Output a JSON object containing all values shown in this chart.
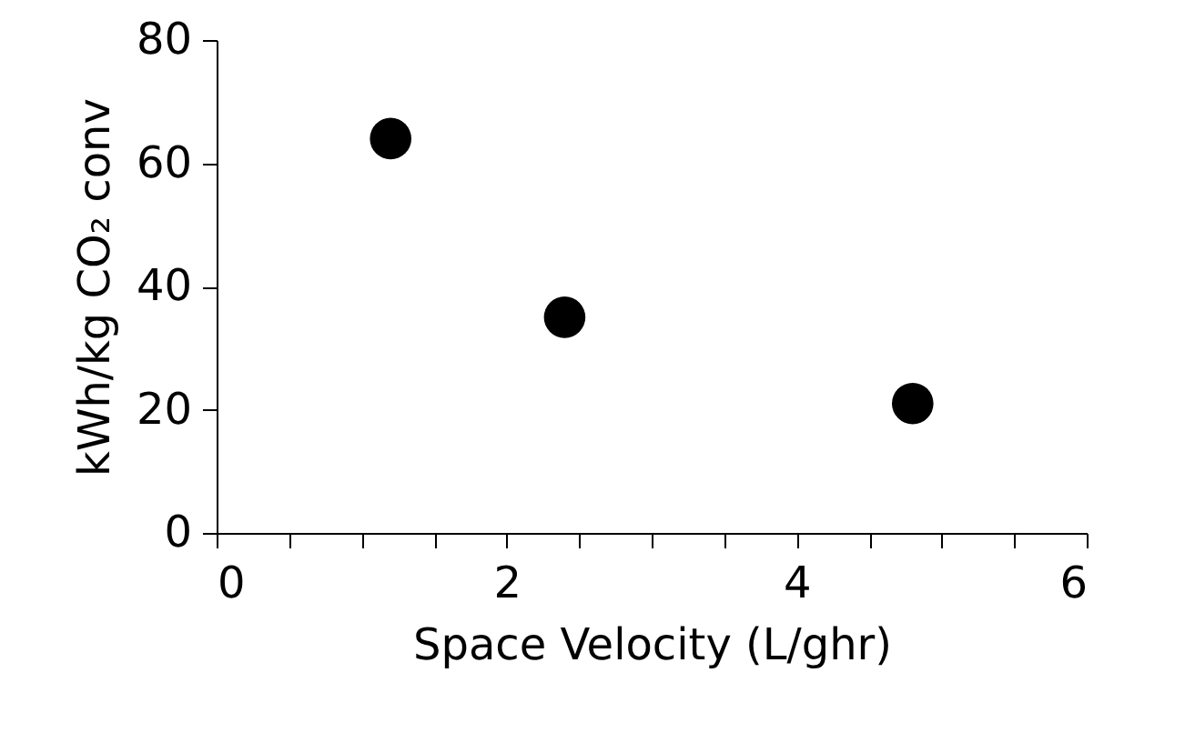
{
  "chart_data": {
    "type": "scatter",
    "xlabel": "Space Velocity (L/ghr)",
    "ylabel": "kWh/kg CO₂ conv",
    "x": [
      1.2,
      2.4,
      4.8
    ],
    "series": [
      {
        "color": "#000000",
        "values": [
          64,
          35,
          21
        ]
      }
    ],
    "xlim": [
      0,
      6
    ],
    "xticks": [
      0,
      {
        "value": 0.5,
        "label": null
      },
      {
        "value": 1,
        "label": null
      },
      {
        "value": 1.5,
        "label": null
      },
      2,
      {
        "value": 2.5,
        "label": null
      },
      {
        "value": 3,
        "label": null
      },
      {
        "value": 3.5,
        "label": null
      },
      4,
      {
        "value": 4.5,
        "label": null
      },
      {
        "value": 5,
        "label": null
      },
      {
        "value": 5.5,
        "label": null
      },
      6
    ],
    "ylim": [
      0,
      80
    ],
    "yticks": [
      0,
      20,
      40,
      60,
      80
    ],
    "marker": "circle",
    "grid": false
  }
}
